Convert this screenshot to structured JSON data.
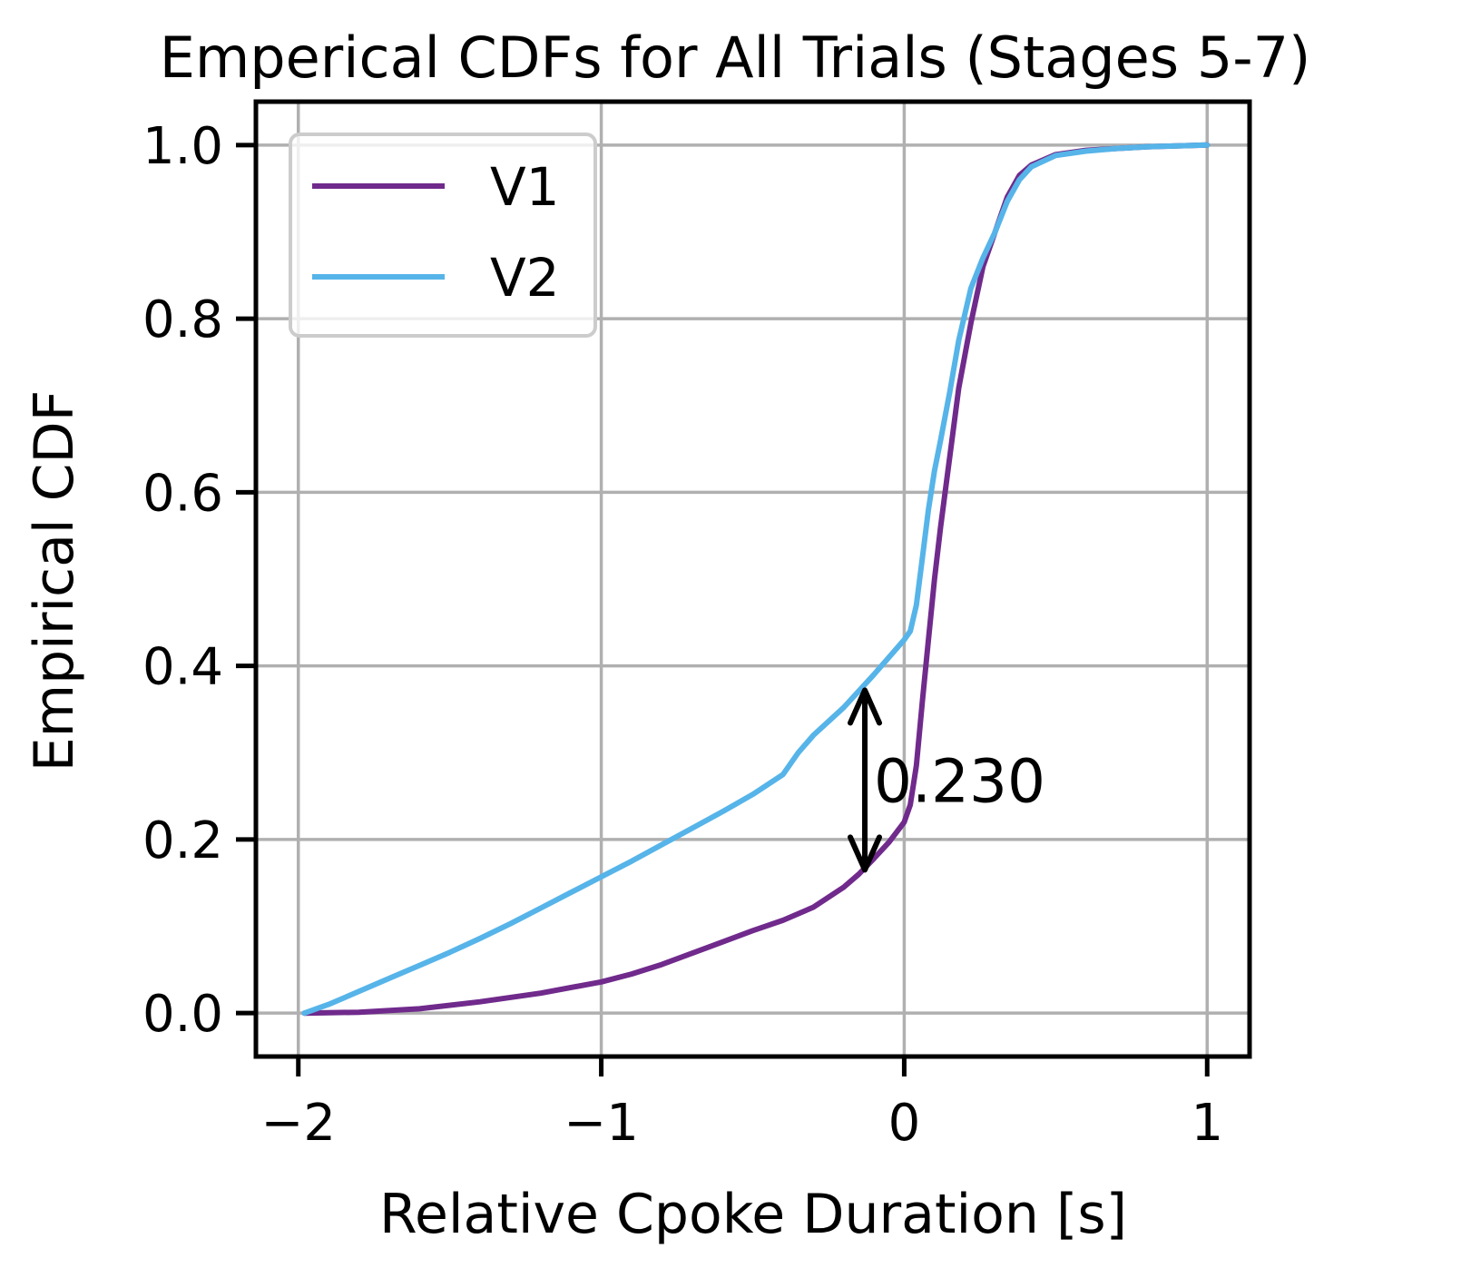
{
  "chart_data": {
    "type": "line",
    "title": "Emperical CDFs for All Trials (Stages 5-7)",
    "xlabel": "Relative Cpoke Duration [s]",
    "ylabel": "Empirical CDF",
    "xlim": [
      -2.14,
      1.14
    ],
    "ylim": [
      -0.05,
      1.05
    ],
    "xticks": [
      -2,
      -1,
      0,
      1
    ],
    "xtick_labels": [
      "−2",
      "−1",
      "0",
      "1"
    ],
    "yticks": [
      0.0,
      0.2,
      0.4,
      0.6,
      0.8,
      1.0
    ],
    "ytick_labels": [
      "0.0",
      "0.2",
      "0.4",
      "0.6",
      "0.8",
      "1.0"
    ],
    "grid": true,
    "legend_position": "upper-left",
    "series": [
      {
        "name": "V1",
        "color": "#702a8c",
        "x": [
          -1.98,
          -1.8,
          -1.6,
          -1.4,
          -1.2,
          -1.0,
          -0.9,
          -0.8,
          -0.7,
          -0.6,
          -0.5,
          -0.4,
          -0.3,
          -0.2,
          -0.15,
          -0.1,
          -0.05,
          0.0,
          0.02,
          0.04,
          0.06,
          0.08,
          0.1,
          0.12,
          0.15,
          0.18,
          0.22,
          0.26,
          0.3,
          0.34,
          0.38,
          0.42,
          0.5,
          0.6,
          0.7,
          0.8,
          0.9,
          1.0
        ],
        "y": [
          0.0,
          0.001,
          0.005,
          0.013,
          0.023,
          0.036,
          0.045,
          0.056,
          0.069,
          0.082,
          0.095,
          0.107,
          0.122,
          0.145,
          0.16,
          0.178,
          0.197,
          0.22,
          0.24,
          0.285,
          0.36,
          0.43,
          0.5,
          0.56,
          0.64,
          0.72,
          0.795,
          0.86,
          0.9,
          0.94,
          0.965,
          0.977,
          0.989,
          0.994,
          0.996,
          0.998,
          0.999,
          1.0
        ]
      },
      {
        "name": "V2",
        "color": "#56b4e9",
        "x": [
          -1.98,
          -1.9,
          -1.8,
          -1.7,
          -1.6,
          -1.5,
          -1.4,
          -1.3,
          -1.2,
          -1.1,
          -1.0,
          -0.9,
          -0.8,
          -0.7,
          -0.6,
          -0.5,
          -0.4,
          -0.35,
          -0.3,
          -0.2,
          -0.1,
          0.0,
          0.02,
          0.04,
          0.06,
          0.08,
          0.1,
          0.12,
          0.15,
          0.18,
          0.22,
          0.26,
          0.3,
          0.34,
          0.38,
          0.42,
          0.5,
          0.6,
          0.7,
          0.8,
          0.9,
          1.0
        ],
        "y": [
          0.0,
          0.01,
          0.025,
          0.04,
          0.055,
          0.07,
          0.086,
          0.103,
          0.121,
          0.139,
          0.157,
          0.175,
          0.194,
          0.213,
          0.232,
          0.252,
          0.275,
          0.3,
          0.32,
          0.352,
          0.39,
          0.43,
          0.44,
          0.47,
          0.525,
          0.58,
          0.625,
          0.66,
          0.715,
          0.775,
          0.835,
          0.87,
          0.9,
          0.935,
          0.96,
          0.975,
          0.988,
          0.993,
          0.996,
          0.998,
          0.999,
          1.0
        ]
      }
    ],
    "annotation": {
      "text": "0.230",
      "x": -0.13,
      "y_top": 0.372,
      "y_bottom": 0.165,
      "color": "#000000"
    }
  }
}
